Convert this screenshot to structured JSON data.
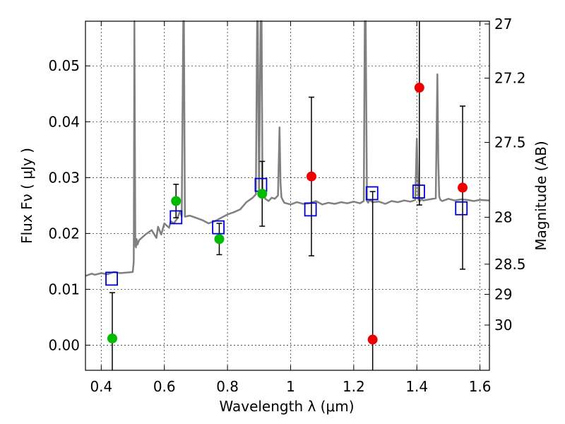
{
  "chart_data": {
    "type": "scatter",
    "xlabel": "Wavelength  λ (μm)",
    "ylabel": "Flux  Fν ( μJy )",
    "ylabel_right": "Magnitude (AB)",
    "xlim": [
      0.35,
      1.63
    ],
    "ylim": [
      -0.0045,
      0.058
    ],
    "grid": true,
    "x_ticks": [
      0.4,
      0.6,
      0.8,
      1.0,
      1.2,
      1.4,
      1.6
    ],
    "x_tick_labels": [
      "0.4",
      "0.6",
      "0.8",
      "1",
      "1.2",
      "1.4",
      "1.6"
    ],
    "y_ticks": [
      0.0,
      0.01,
      0.02,
      0.03,
      0.04,
      0.05
    ],
    "y_tick_labels": [
      "0.00",
      "0.01",
      "0.02",
      "0.03",
      "0.04",
      "0.05"
    ],
    "mag_ticks": [
      {
        "label": "27",
        "flux": 0.0575
      },
      {
        "label": "27.2",
        "flux": 0.0478
      },
      {
        "label": "27.5",
        "flux": 0.0363
      },
      {
        "label": "28",
        "flux": 0.0229
      },
      {
        "label": "28.5",
        "flux": 0.0145
      },
      {
        "label": "29",
        "flux": 0.0091
      },
      {
        "label": "30",
        "flux": 0.0036
      }
    ],
    "colors": {
      "model": "#808080",
      "model_points": "#0000cc",
      "detected": "#00bb00",
      "undetected": "#ee0000",
      "errorbar": "#000000"
    },
    "model_spectrum": {
      "x": [
        0.35,
        0.37,
        0.38,
        0.4,
        0.42,
        0.44,
        0.46,
        0.48,
        0.5,
        0.503,
        0.505,
        0.508,
        0.51,
        0.512,
        0.515,
        0.52,
        0.54,
        0.56,
        0.575,
        0.58,
        0.59,
        0.6,
        0.615,
        0.62,
        0.63,
        0.64,
        0.65,
        0.655,
        0.66,
        0.662,
        0.665,
        0.68,
        0.7,
        0.72,
        0.74,
        0.76,
        0.78,
        0.8,
        0.82,
        0.84,
        0.86,
        0.88,
        0.89,
        0.894,
        0.896,
        0.9,
        0.905,
        0.908,
        0.911,
        0.916,
        0.92,
        0.93,
        0.94,
        0.95,
        0.96,
        0.965,
        0.968,
        0.971,
        0.975,
        0.98,
        1.0,
        1.02,
        1.04,
        1.06,
        1.08,
        1.1,
        1.12,
        1.14,
        1.16,
        1.18,
        1.2,
        1.22,
        1.232,
        1.235,
        1.238,
        1.242,
        1.246,
        1.25,
        1.26,
        1.28,
        1.3,
        1.32,
        1.34,
        1.36,
        1.38,
        1.395,
        1.4,
        1.405,
        1.41,
        1.415,
        1.42,
        1.44,
        1.46,
        1.465,
        1.468,
        1.471,
        1.475,
        1.48,
        1.5,
        1.52,
        1.54,
        1.56,
        1.58,
        1.6,
        1.63
      ],
      "y": [
        0.0124,
        0.0128,
        0.0126,
        0.0129,
        0.0127,
        0.0131,
        0.0129,
        0.013,
        0.0131,
        0.015,
        0.058,
        0.018,
        0.0175,
        0.019,
        0.018,
        0.0188,
        0.0198,
        0.0206,
        0.0192,
        0.0212,
        0.0198,
        0.0218,
        0.021,
        0.0222,
        0.0218,
        0.0226,
        0.024,
        0.023,
        0.058,
        0.058,
        0.023,
        0.0232,
        0.0228,
        0.0224,
        0.0218,
        0.0222,
        0.0228,
        0.0234,
        0.0238,
        0.0243,
        0.0256,
        0.0264,
        0.027,
        0.058,
        0.058,
        0.027,
        0.058,
        0.058,
        0.027,
        0.0268,
        0.0262,
        0.0258,
        0.0264,
        0.0262,
        0.0268,
        0.039,
        0.029,
        0.0265,
        0.026,
        0.0255,
        0.0252,
        0.0256,
        0.0253,
        0.0254,
        0.0258,
        0.0252,
        0.0255,
        0.0253,
        0.0256,
        0.0254,
        0.0257,
        0.0254,
        0.0258,
        0.058,
        0.058,
        0.0258,
        0.0255,
        0.026,
        0.0256,
        0.0257,
        0.0253,
        0.0258,
        0.0256,
        0.0259,
        0.0257,
        0.026,
        0.037,
        0.026,
        0.0258,
        0.0262,
        0.0259,
        0.0261,
        0.0263,
        0.0485,
        0.033,
        0.0266,
        0.026,
        0.0258,
        0.0262,
        0.0259,
        0.0261,
        0.026,
        0.0258,
        0.026,
        0.0259
      ]
    },
    "model_points": {
      "x": [
        0.433,
        0.637,
        0.771,
        0.906,
        1.063,
        1.258,
        1.406,
        1.541
      ],
      "y": [
        0.0119,
        0.0229,
        0.0211,
        0.0287,
        0.0243,
        0.0272,
        0.0275,
        0.0245
      ]
    },
    "observed": [
      {
        "x": 0.435,
        "y": 0.0012,
        "err": 0.0082,
        "detected": true
      },
      {
        "x": 0.637,
        "y": 0.0258,
        "err": 0.003,
        "detected": true
      },
      {
        "x": 0.774,
        "y": 0.019,
        "err": 0.0028,
        "detected": true
      },
      {
        "x": 0.91,
        "y": 0.0271,
        "err": 0.0058,
        "detected": true
      },
      {
        "x": 1.066,
        "y": 0.0302,
        "err": 0.0142,
        "detected": false
      },
      {
        "x": 1.26,
        "y": 0.001,
        "err": 0.0265,
        "detected": false
      },
      {
        "x": 1.408,
        "y": 0.0461,
        "err": 0.021,
        "detected": false
      },
      {
        "x": 1.545,
        "y": 0.0282,
        "err": 0.0146,
        "detected": false
      }
    ]
  }
}
